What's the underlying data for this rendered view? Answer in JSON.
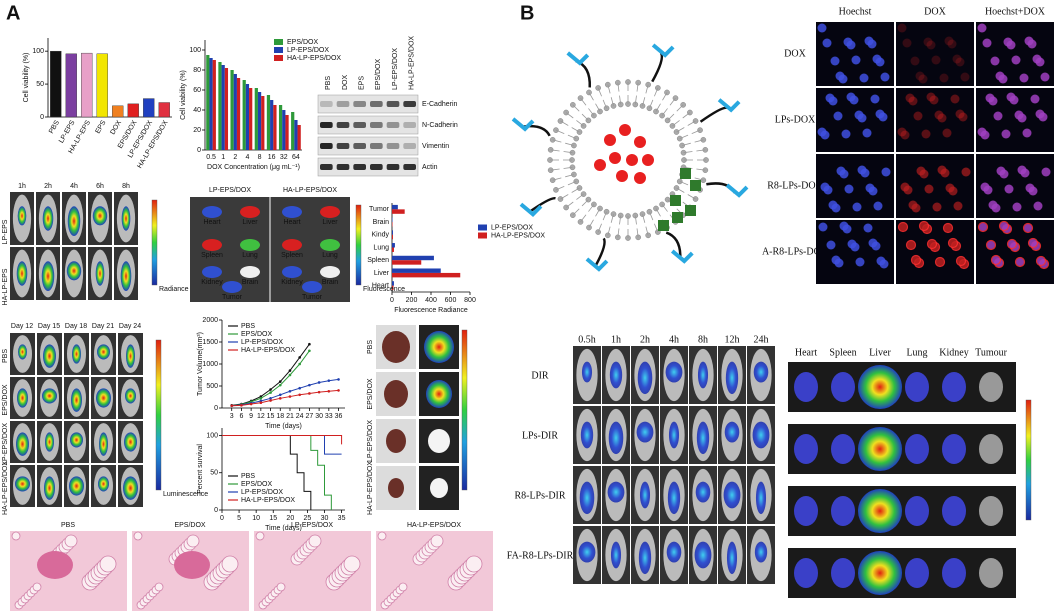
{
  "panels": {
    "a": "A",
    "b": "B"
  },
  "chart_data": [
    {
      "type": "bar",
      "y_label": "Cell viability (%)",
      "categories": [
        "PBS",
        "LP-EPS",
        "HA-LP-EPS",
        "EPS",
        "DOX",
        "EPS/DOX",
        "LP-EPS/DOX",
        "HA-LP-EPS/DOX"
      ],
      "values": [
        100,
        96,
        97,
        96,
        17,
        20,
        28,
        22
      ],
      "colors": [
        "#111111",
        "#7b3fa0",
        "#e8a0c8",
        "#f2e600",
        "#f08020",
        "#e02020",
        "#2040c0",
        "#e03040"
      ],
      "ylim": [
        0,
        120
      ],
      "yticks": [
        0,
        50,
        100
      ]
    },
    {
      "type": "grouped_bar",
      "y_label": "Cell viability (%)",
      "x_label": "DOX Concentration (μg mL⁻¹)",
      "categories": [
        "0.5",
        "1",
        "2",
        "4",
        "8",
        "16",
        "32",
        "64"
      ],
      "series": [
        {
          "name": "EPS/DOX",
          "color": "#2e9a3a",
          "values": [
            95,
            88,
            80,
            70,
            62,
            55,
            45,
            38
          ]
        },
        {
          "name": "LP-EPS/DOX",
          "color": "#2040b0",
          "values": [
            92,
            85,
            76,
            66,
            58,
            50,
            40,
            30
          ]
        },
        {
          "name": "HA-LP-EPS/DOX",
          "color": "#d02020",
          "values": [
            90,
            82,
            72,
            62,
            54,
            45,
            35,
            25
          ]
        }
      ],
      "ylim": [
        0,
        110
      ],
      "yticks": [
        0,
        20,
        40,
        60,
        80,
        100
      ],
      "legend": "upper right"
    },
    {
      "type": "hbar",
      "x_label": "Fluorescence Radiance",
      "categories": [
        "Tumor",
        "Brain",
        "Kindy",
        "Lung",
        "Spleen",
        "Liver",
        "Heart"
      ],
      "series": [
        {
          "name": "LP-EPS/DOX",
          "color": "#2040b0",
          "values": [
            60,
            5,
            10,
            30,
            430,
            500,
            20
          ]
        },
        {
          "name": "HA-LP-EPS/DOX",
          "color": "#d02020",
          "values": [
            130,
            5,
            10,
            20,
            300,
            700,
            15
          ]
        }
      ],
      "xlim": [
        0,
        800
      ],
      "xticks": [
        0,
        200,
        400,
        600,
        800
      ],
      "legend": "right"
    },
    {
      "type": "line",
      "y_label": "Tumor Volume(mm³)",
      "x_label": "Time (days)",
      "x": [
        3,
        6,
        9,
        12,
        15,
        18,
        21,
        24,
        27,
        30,
        33,
        36
      ],
      "series": [
        {
          "name": "PBS",
          "color": "#111111",
          "values": [
            60,
            90,
            160,
            260,
            420,
            600,
            850,
            1150,
            1450,
            null,
            null,
            null
          ]
        },
        {
          "name": "EPS/DOX",
          "color": "#2e9a3a",
          "values": [
            50,
            80,
            140,
            220,
            350,
            520,
            750,
            1000,
            1300,
            null,
            null,
            null
          ]
        },
        {
          "name": "LP-EPS/DOX",
          "color": "#2040b0",
          "values": [
            50,
            70,
            110,
            160,
            220,
            300,
            380,
            450,
            520,
            580,
            620,
            650
          ]
        },
        {
          "name": "HA-LP-EPS/DOX",
          "color": "#d02020",
          "values": [
            50,
            60,
            90,
            120,
            170,
            220,
            260,
            300,
            330,
            360,
            380,
            400
          ]
        }
      ],
      "xlim": [
        0,
        38
      ],
      "xticks": [
        3,
        6,
        9,
        12,
        15,
        18,
        21,
        24,
        27,
        30,
        33,
        36
      ],
      "ylim": [
        0,
        2000
      ],
      "yticks": [
        0,
        500,
        1000,
        1500,
        2000
      ],
      "legend": "upper left"
    },
    {
      "type": "step",
      "y_label": "Percent survival",
      "x_label": "Time (days)",
      "series": [
        {
          "name": "PBS",
          "color": "#111111",
          "x": [
            0,
            18,
            20,
            22,
            24,
            26
          ],
          "values": [
            100,
            100,
            75,
            50,
            25,
            0
          ]
        },
        {
          "name": "EPS/DOX",
          "color": "#2e9a3a",
          "x": [
            0,
            24,
            26,
            28,
            30,
            32
          ],
          "values": [
            100,
            100,
            80,
            60,
            20,
            0
          ]
        },
        {
          "name": "LP-EPS/DOX",
          "color": "#2040b0",
          "x": [
            0,
            28,
            30,
            35
          ],
          "values": [
            100,
            100,
            75,
            75
          ]
        },
        {
          "name": "HA-LP-EPS/DOX",
          "color": "#d02020",
          "x": [
            0,
            30,
            35
          ],
          "values": [
            100,
            100,
            88
          ]
        }
      ],
      "xlim": [
        0,
        36
      ],
      "xticks": [
        0,
        5,
        10,
        15,
        20,
        25,
        30,
        35
      ],
      "ylim": [
        0,
        110
      ],
      "yticks": [
        0,
        50,
        100
      ],
      "legend": "lower left"
    }
  ],
  "blot": {
    "lanes": [
      "PBS",
      "DOX",
      "EPS",
      "EPS/DOX",
      "LP-EPS/DOX",
      "HA-LP-EPS/DOX"
    ],
    "proteins": [
      "E-Cadherin",
      "N-Cadherin",
      "Vimentin",
      "Actin"
    ]
  },
  "imaging_a1": {
    "times": [
      "1h",
      "2h",
      "4h",
      "6h",
      "8h"
    ],
    "groups": [
      "LP-EPS",
      "HA-LP-EPS"
    ],
    "scale": "Radiance"
  },
  "organs_a": {
    "groups": [
      "LP-EPS/DOX",
      "HA-LP-EPS/DOX"
    ],
    "organs": [
      "Heart",
      "Liver",
      "Spleen",
      "Lung",
      "Kidney",
      "Brain",
      "Tumor"
    ],
    "scale": "Fluorescence"
  },
  "imaging_a2": {
    "days": [
      "Day 12",
      "Day 15",
      "Day 18",
      "Day 21",
      "Day 24"
    ],
    "groups": [
      "PBS",
      "EPS/DOX",
      "LP-EPS/DOX",
      "HA-LP-EPS/DOX"
    ],
    "scale": "Luminescence"
  },
  "histology": {
    "groups": [
      "PBS",
      "EPS/DOX",
      "LP-EPS/DOX",
      "HA-LP-EPS/DOX"
    ]
  },
  "microscopy": {
    "channels": [
      "Hoechst",
      "DOX",
      "Hoechst+DOX"
    ],
    "groups": [
      "DOX",
      "LPs-DOX",
      "R8-LPs-DOX",
      "A-R8-LPs-DOX"
    ]
  },
  "imaging_b": {
    "times": [
      "0.5h",
      "1h",
      "2h",
      "4h",
      "8h",
      "12h",
      "24h"
    ],
    "groups": [
      "DIR",
      "LPs-DIR",
      "R8-LPs-DIR",
      "FA-R8-LPs-DIR"
    ],
    "organs": [
      "Heart",
      "Spleen",
      "Liver",
      "Lung",
      "Kidney",
      "Tumour"
    ]
  }
}
